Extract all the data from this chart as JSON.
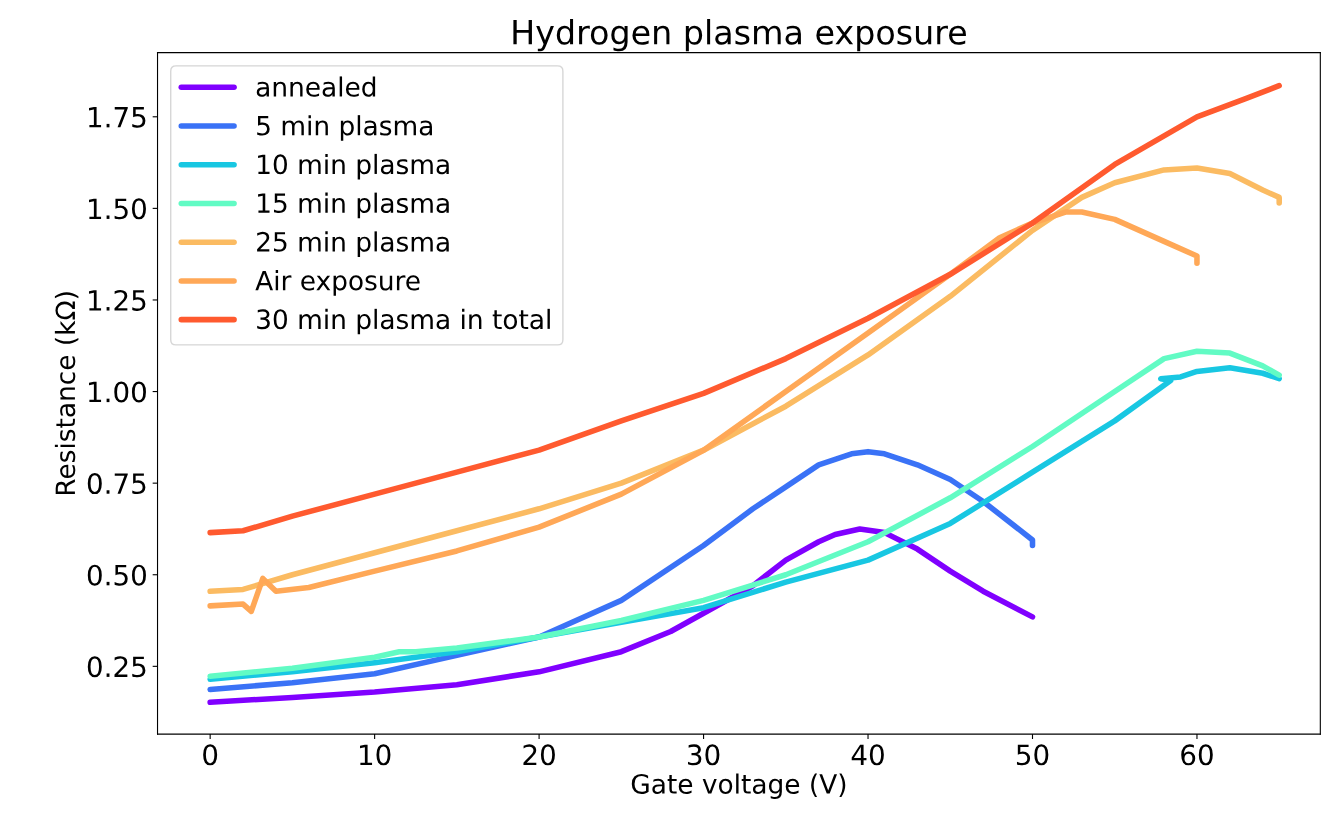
{
  "chart_data": {
    "type": "line",
    "title": "Hydrogen plasma exposure",
    "xlabel": "Gate voltage (V)",
    "ylabel": "Resistance (kΩ)",
    "xlim": [
      -3.2,
      67.5
    ],
    "ylim": [
      0.065,
      1.925
    ],
    "xticks": [
      0,
      10,
      20,
      30,
      40,
      50,
      60
    ],
    "yticks": [
      {
        "value": 0.25,
        "label": "0.25"
      },
      {
        "value": 0.5,
        "label": "0.50"
      },
      {
        "value": 0.75,
        "label": "0.75"
      },
      {
        "value": 1.0,
        "label": "1.00"
      },
      {
        "value": 1.25,
        "label": "1.25"
      },
      {
        "value": 1.5,
        "label": "1.50"
      },
      {
        "value": 1.75,
        "label": "1.75"
      }
    ],
    "grid": false,
    "legend": "top left",
    "marker": "none",
    "line_style": "solid",
    "series": [
      {
        "name": "annealed",
        "color": "#8000ff",
        "x": [
          0,
          5,
          10,
          15,
          20,
          25,
          28,
          30,
          33,
          35,
          37,
          38,
          39.5,
          41,
          43,
          45,
          47,
          50
        ],
        "values": [
          0.152,
          0.165,
          0.18,
          0.2,
          0.235,
          0.29,
          0.345,
          0.395,
          0.47,
          0.54,
          0.59,
          0.61,
          0.625,
          0.615,
          0.57,
          0.51,
          0.455,
          0.385
        ]
      },
      {
        "name": "5 min plasma",
        "color": "#3a72f6",
        "x": [
          0,
          5,
          10,
          15,
          20,
          25,
          30,
          33,
          35,
          37,
          39,
          40,
          41,
          43,
          45,
          47,
          50,
          50
        ],
        "values": [
          0.187,
          0.205,
          0.23,
          0.28,
          0.33,
          0.43,
          0.58,
          0.68,
          0.74,
          0.8,
          0.83,
          0.836,
          0.83,
          0.8,
          0.76,
          0.7,
          0.595,
          0.58
        ]
      },
      {
        "name": "10 min plasma",
        "color": "#18c7e2",
        "x": [
          0,
          5,
          10,
          15,
          20,
          25,
          30,
          35,
          40,
          45,
          50,
          55,
          58.4,
          57.8,
          59,
          60,
          62,
          64,
          65
        ],
        "values": [
          0.215,
          0.235,
          0.26,
          0.29,
          0.33,
          0.37,
          0.41,
          0.48,
          0.54,
          0.64,
          0.78,
          0.92,
          1.03,
          1.035,
          1.04,
          1.055,
          1.065,
          1.05,
          1.035
        ]
      },
      {
        "name": "15 min plasma",
        "color": "#62fbc4",
        "x": [
          0,
          5,
          10,
          11.5,
          12.5,
          15,
          20,
          25,
          30,
          35,
          40,
          45,
          50,
          55,
          58,
          60,
          62,
          64,
          65
        ],
        "values": [
          0.223,
          0.245,
          0.275,
          0.29,
          0.29,
          0.3,
          0.33,
          0.375,
          0.43,
          0.5,
          0.59,
          0.71,
          0.85,
          1.0,
          1.09,
          1.11,
          1.105,
          1.07,
          1.045
        ]
      },
      {
        "name": "25 min plasma",
        "color": "#fbbb62",
        "x": [
          0,
          2,
          5,
          10,
          15,
          20,
          25,
          30,
          35,
          40,
          45,
          50,
          53,
          55,
          58,
          60,
          62,
          64,
          65,
          65
        ],
        "values": [
          0.455,
          0.46,
          0.5,
          0.56,
          0.62,
          0.68,
          0.75,
          0.84,
          0.96,
          1.1,
          1.26,
          1.44,
          1.53,
          1.57,
          1.605,
          1.61,
          1.595,
          1.55,
          1.53,
          1.515
        ]
      },
      {
        "name": "Air exposure",
        "color": "#ffa857",
        "x": [
          0,
          2,
          2.5,
          3.2,
          4,
          6,
          10,
          15,
          20,
          25,
          30,
          35,
          40,
          45,
          48,
          50,
          52,
          53,
          55,
          58,
          60,
          60
        ],
        "values": [
          0.415,
          0.42,
          0.4,
          0.49,
          0.455,
          0.465,
          0.51,
          0.565,
          0.63,
          0.72,
          0.84,
          1.0,
          1.16,
          1.32,
          1.42,
          1.46,
          1.49,
          1.49,
          1.47,
          1.41,
          1.37,
          1.35
        ]
      },
      {
        "name": "30 min plasma in total",
        "color": "#ff5a2f",
        "x": [
          0,
          2,
          5,
          10,
          15,
          20,
          25,
          30,
          35,
          40,
          45,
          50,
          55,
          60,
          63,
          65
        ],
        "values": [
          0.615,
          0.62,
          0.66,
          0.72,
          0.78,
          0.84,
          0.92,
          0.995,
          1.09,
          1.2,
          1.32,
          1.46,
          1.62,
          1.75,
          1.8,
          1.835
        ]
      }
    ]
  }
}
